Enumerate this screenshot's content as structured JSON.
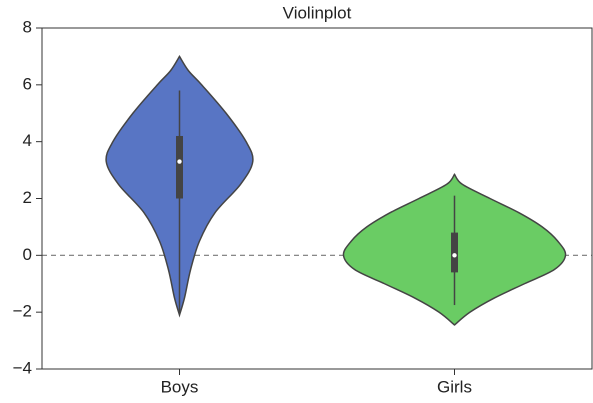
{
  "chart_data": {
    "type": "violin",
    "title": "Violinplot",
    "categories": [
      "Boys",
      "Girls"
    ],
    "series": [
      {
        "name": "Boys",
        "color": "#5875c4",
        "kde": {
          "y": [
            7.0,
            6.5,
            6.0,
            5.0,
            4.0,
            3.3,
            2.5,
            1.5,
            0.5,
            -0.5,
            -1.5,
            -2.1
          ],
          "density": [
            0,
            0.08,
            0.2,
            0.42,
            0.6,
            0.66,
            0.55,
            0.32,
            0.18,
            0.1,
            0.045,
            0
          ]
        },
        "min": -2.0,
        "q1": 2.0,
        "median": 3.3,
        "q3": 4.2,
        "max": 5.8
      },
      {
        "name": "Girls",
        "color": "#6acc64",
        "kde": {
          "y": [
            2.85,
            2.5,
            2.0,
            1.5,
            1.0,
            0.5,
            0.0,
            -0.5,
            -1.0,
            -1.5,
            -2.0,
            -2.45
          ],
          "density": [
            0,
            0.07,
            0.32,
            0.58,
            0.79,
            0.93,
            1.0,
            0.9,
            0.63,
            0.36,
            0.14,
            0
          ]
        },
        "min": -1.75,
        "q1": -0.6,
        "median": 0.0,
        "q3": 0.8,
        "max": 2.1
      }
    ],
    "ylim": [
      -4,
      8
    ],
    "yticks": [
      {
        "value": -4,
        "label": "−4"
      },
      {
        "value": -2,
        "label": "−2"
      },
      0,
      2,
      4,
      6,
      8
    ],
    "reference_line": 0
  }
}
